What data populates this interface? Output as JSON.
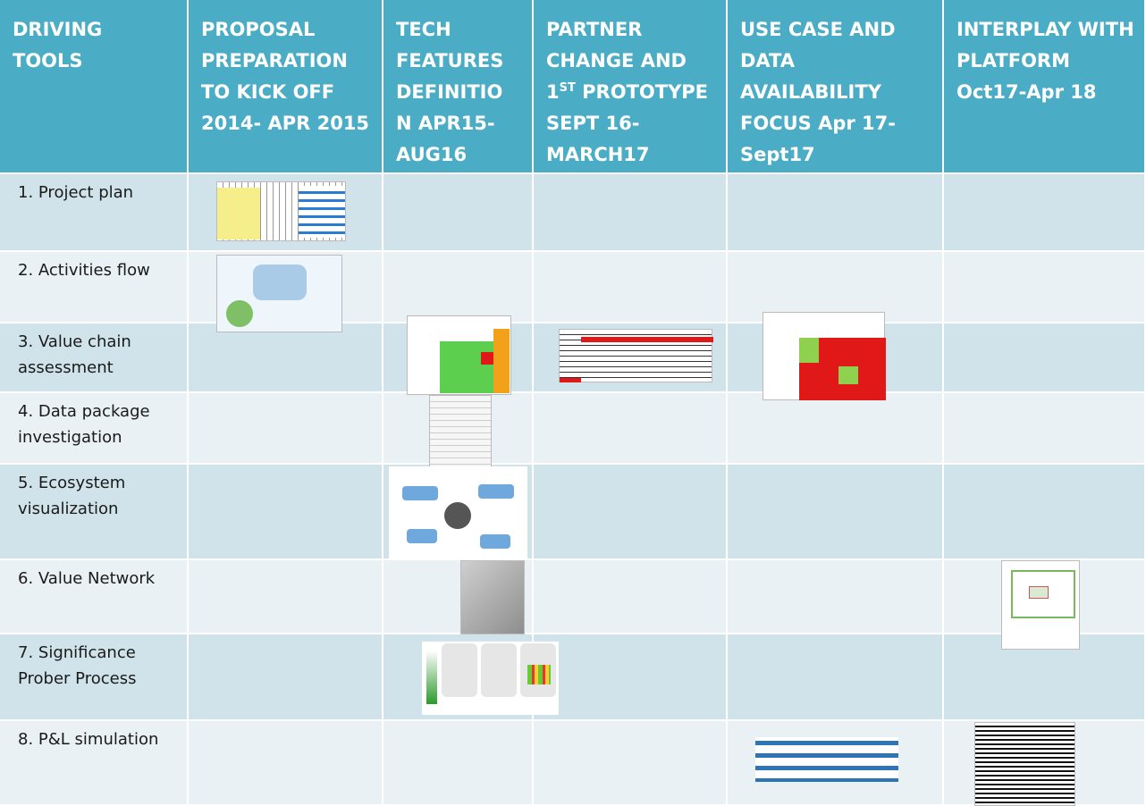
{
  "table": {
    "header": [
      "DRIVING TOOLS",
      "PROPOSAL PREPARATION TO KICK OFF 2014- APR 2015",
      "TECH FEATURES DEFINITIO N APR15-AUG16",
      {
        "before": "PARTNER CHANGE AND 1",
        "sup": "ST",
        "after": " PROTOTYPE SEPT 16-MARCH17"
      },
      "USE CASE AND DATA AVAILABILITY FOCUS Apr 17-Sept17",
      "INTERPLAY WITH PLATFORM Oct17-Apr 18"
    ],
    "rows": [
      [
        "1. Project plan"
      ],
      [
        "2. Activities flow"
      ],
      [
        "3. Value chain assessment"
      ],
      [
        "4. Data package investigation"
      ],
      [
        "5. Ecosystem visualization"
      ],
      [
        "6. Value Network"
      ],
      [
        "7. Significance Prober Process"
      ],
      [
        "8. P&L simulation"
      ]
    ]
  }
}
